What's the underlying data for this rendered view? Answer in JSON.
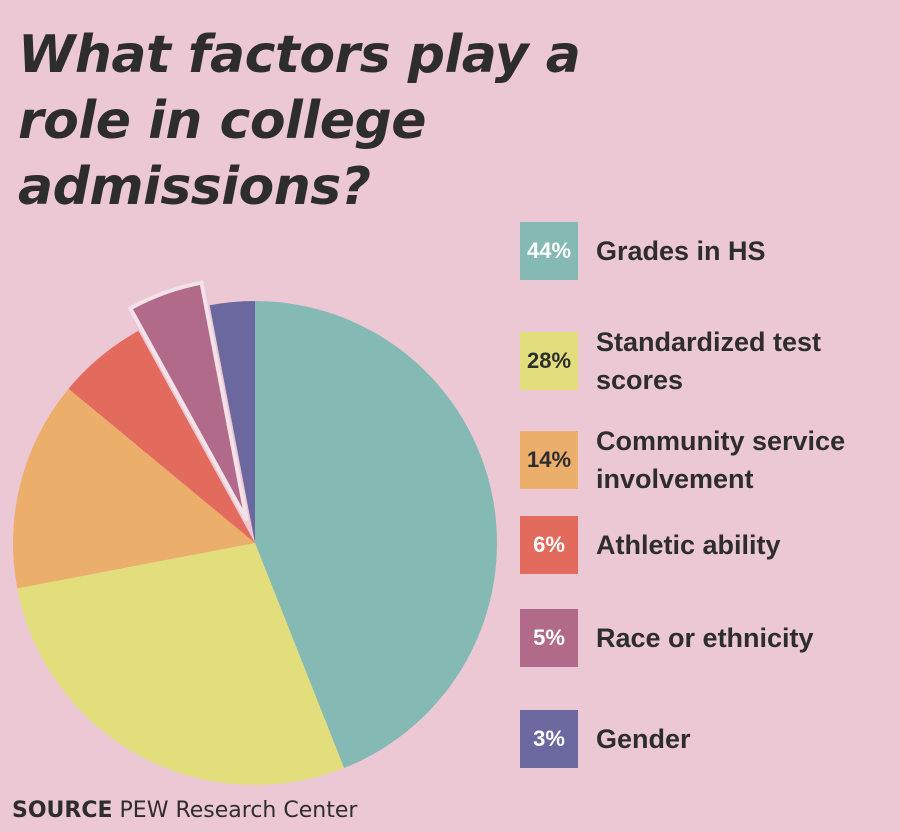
{
  "chart_data": {
    "type": "pie",
    "title": "What factors play a role in college admissions?",
    "slices": [
      {
        "label": "Grades in HS",
        "value": 44,
        "display": "44%",
        "color": "#85b9b4",
        "text_color": "#ffffff"
      },
      {
        "label": "Standardized test scores",
        "value": 28,
        "display": "28%",
        "color": "#e2de7c",
        "text_color": "#2e2d2d"
      },
      {
        "label": "Community service involvement",
        "value": 14,
        "display": "14%",
        "color": "#ebae6b",
        "text_color": "#2e2d2d"
      },
      {
        "label": "Athletic ability",
        "value": 6,
        "display": "6%",
        "color": "#e36b5e",
        "text_color": "#ffffff"
      },
      {
        "label": "Race or ethnicity",
        "value": 5,
        "display": "5%",
        "color": "#b16a8a",
        "text_color": "#ffffff",
        "exploded": true
      },
      {
        "label": "Gender",
        "value": 3,
        "display": "3%",
        "color": "#6b68a0",
        "text_color": "#ffffff"
      }
    ]
  },
  "source": {
    "label": "SOURCE",
    "text": "PEW Research Center"
  }
}
